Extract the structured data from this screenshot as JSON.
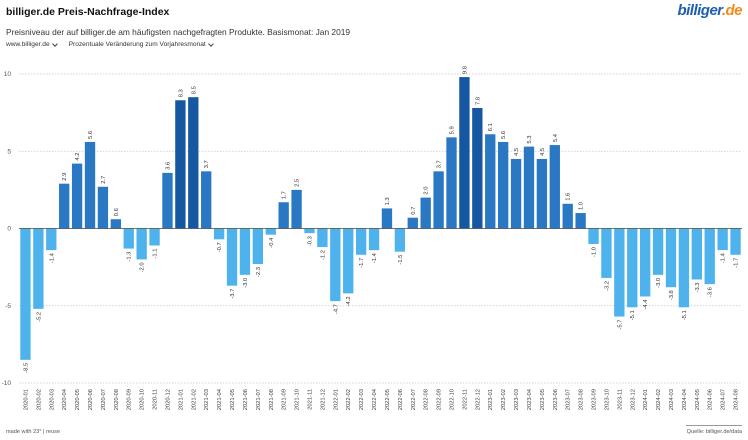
{
  "header": {
    "title": "billiger.de Preis-Nachfrage-Index",
    "logo_part1": "billiger",
    "logo_part2": ".de",
    "subtitle": "Preisniveau der auf billiger.de am häufigsten nachgefragten Produkte. Basismonat: Jan 2019"
  },
  "controls": {
    "source_select": "www.billiger.de",
    "metric_select": "Prozentuale Veränderung zum Vorjahresmonat"
  },
  "footer": {
    "made_with": "made with 23° | reuse",
    "source": "Quelle: billiger.de/data"
  },
  "colors": {
    "negative": "#4eb2ec",
    "positive": "#2a78c4",
    "peak": "#1557a0"
  },
  "chart_data": {
    "type": "bar",
    "ylim": [
      -10,
      10
    ],
    "yticks": [
      -10,
      -5,
      0,
      5,
      10
    ],
    "grid": true,
    "categories": [
      "2020-01",
      "2020-02",
      "2020-03",
      "2020-04",
      "2020-05",
      "2020-06",
      "2020-07",
      "2020-08",
      "2020-09",
      "2020-10",
      "2020-11",
      "2020-12",
      "2021-01",
      "2021-02",
      "2021-03",
      "2021-04",
      "2021-05",
      "2021-06",
      "2021-07",
      "2021-08",
      "2021-09",
      "2021-10",
      "2021-11",
      "2021-12",
      "2022-01",
      "2022-02",
      "2022-03",
      "2022-04",
      "2022-05",
      "2022-06",
      "2022-07",
      "2022-08",
      "2022-09",
      "2022-10",
      "2022-11",
      "2022-12",
      "2023-01",
      "2023-02",
      "2023-03",
      "2023-04",
      "2023-05",
      "2023-06",
      "2023-07",
      "2023-08",
      "2023-09",
      "2023-10",
      "2023-11",
      "2023-12",
      "2024-01",
      "2024-02",
      "2024-03",
      "2024-04",
      "2024-05",
      "2024-06",
      "2024-07",
      "2024-08"
    ],
    "values": [
      -8.5,
      -5.2,
      -1.4,
      2.9,
      4.2,
      5.6,
      2.7,
      0.6,
      -1.3,
      -2.0,
      -1.1,
      3.6,
      8.3,
      8.5,
      3.7,
      -0.7,
      -3.7,
      -3.0,
      -2.3,
      -0.4,
      1.7,
      2.5,
      -0.3,
      -1.2,
      -4.7,
      -4.2,
      -1.7,
      -1.4,
      1.3,
      -1.5,
      0.7,
      2.0,
      3.7,
      5.9,
      9.8,
      7.8,
      6.1,
      5.6,
      4.5,
      5.3,
      4.5,
      5.4,
      1.6,
      1.0,
      -1.0,
      -3.2,
      -5.7,
      -5.1,
      -4.4,
      -3.0,
      -3.8,
      -5.1,
      -3.3,
      -3.6,
      -1.4,
      -1.7
    ],
    "labels": [
      "-8.5",
      "-5.2",
      "-1.4",
      "2.9",
      "4.2",
      "5.6",
      "2.7",
      "0.6",
      "-1.3",
      "-2.0",
      "-1.1",
      "3.6",
      "8.3",
      "8.5",
      "3.7",
      "-0.7",
      "-3.7",
      "-3.0",
      "-2.3",
      "-0.4",
      "1.7",
      "2.5",
      "-0.3",
      "-1.2",
      "-4.7",
      "-4.2",
      "-1.7",
      "-1.4",
      "1.3",
      "-1.5",
      "0.7",
      "2.0",
      "3.7",
      "5.9",
      "9.8",
      "7.8",
      "6.1",
      "5.6",
      "4.5",
      "5.3",
      "4.5",
      "5.4",
      "1.6",
      "1.0",
      "-1.0",
      "-3.2",
      "-5.7",
      "-5.1",
      "-4.4",
      "-3.0",
      "-3.8",
      "-5.1",
      "-3.3",
      "-3.6",
      "-1.4",
      "-1.7"
    ]
  }
}
